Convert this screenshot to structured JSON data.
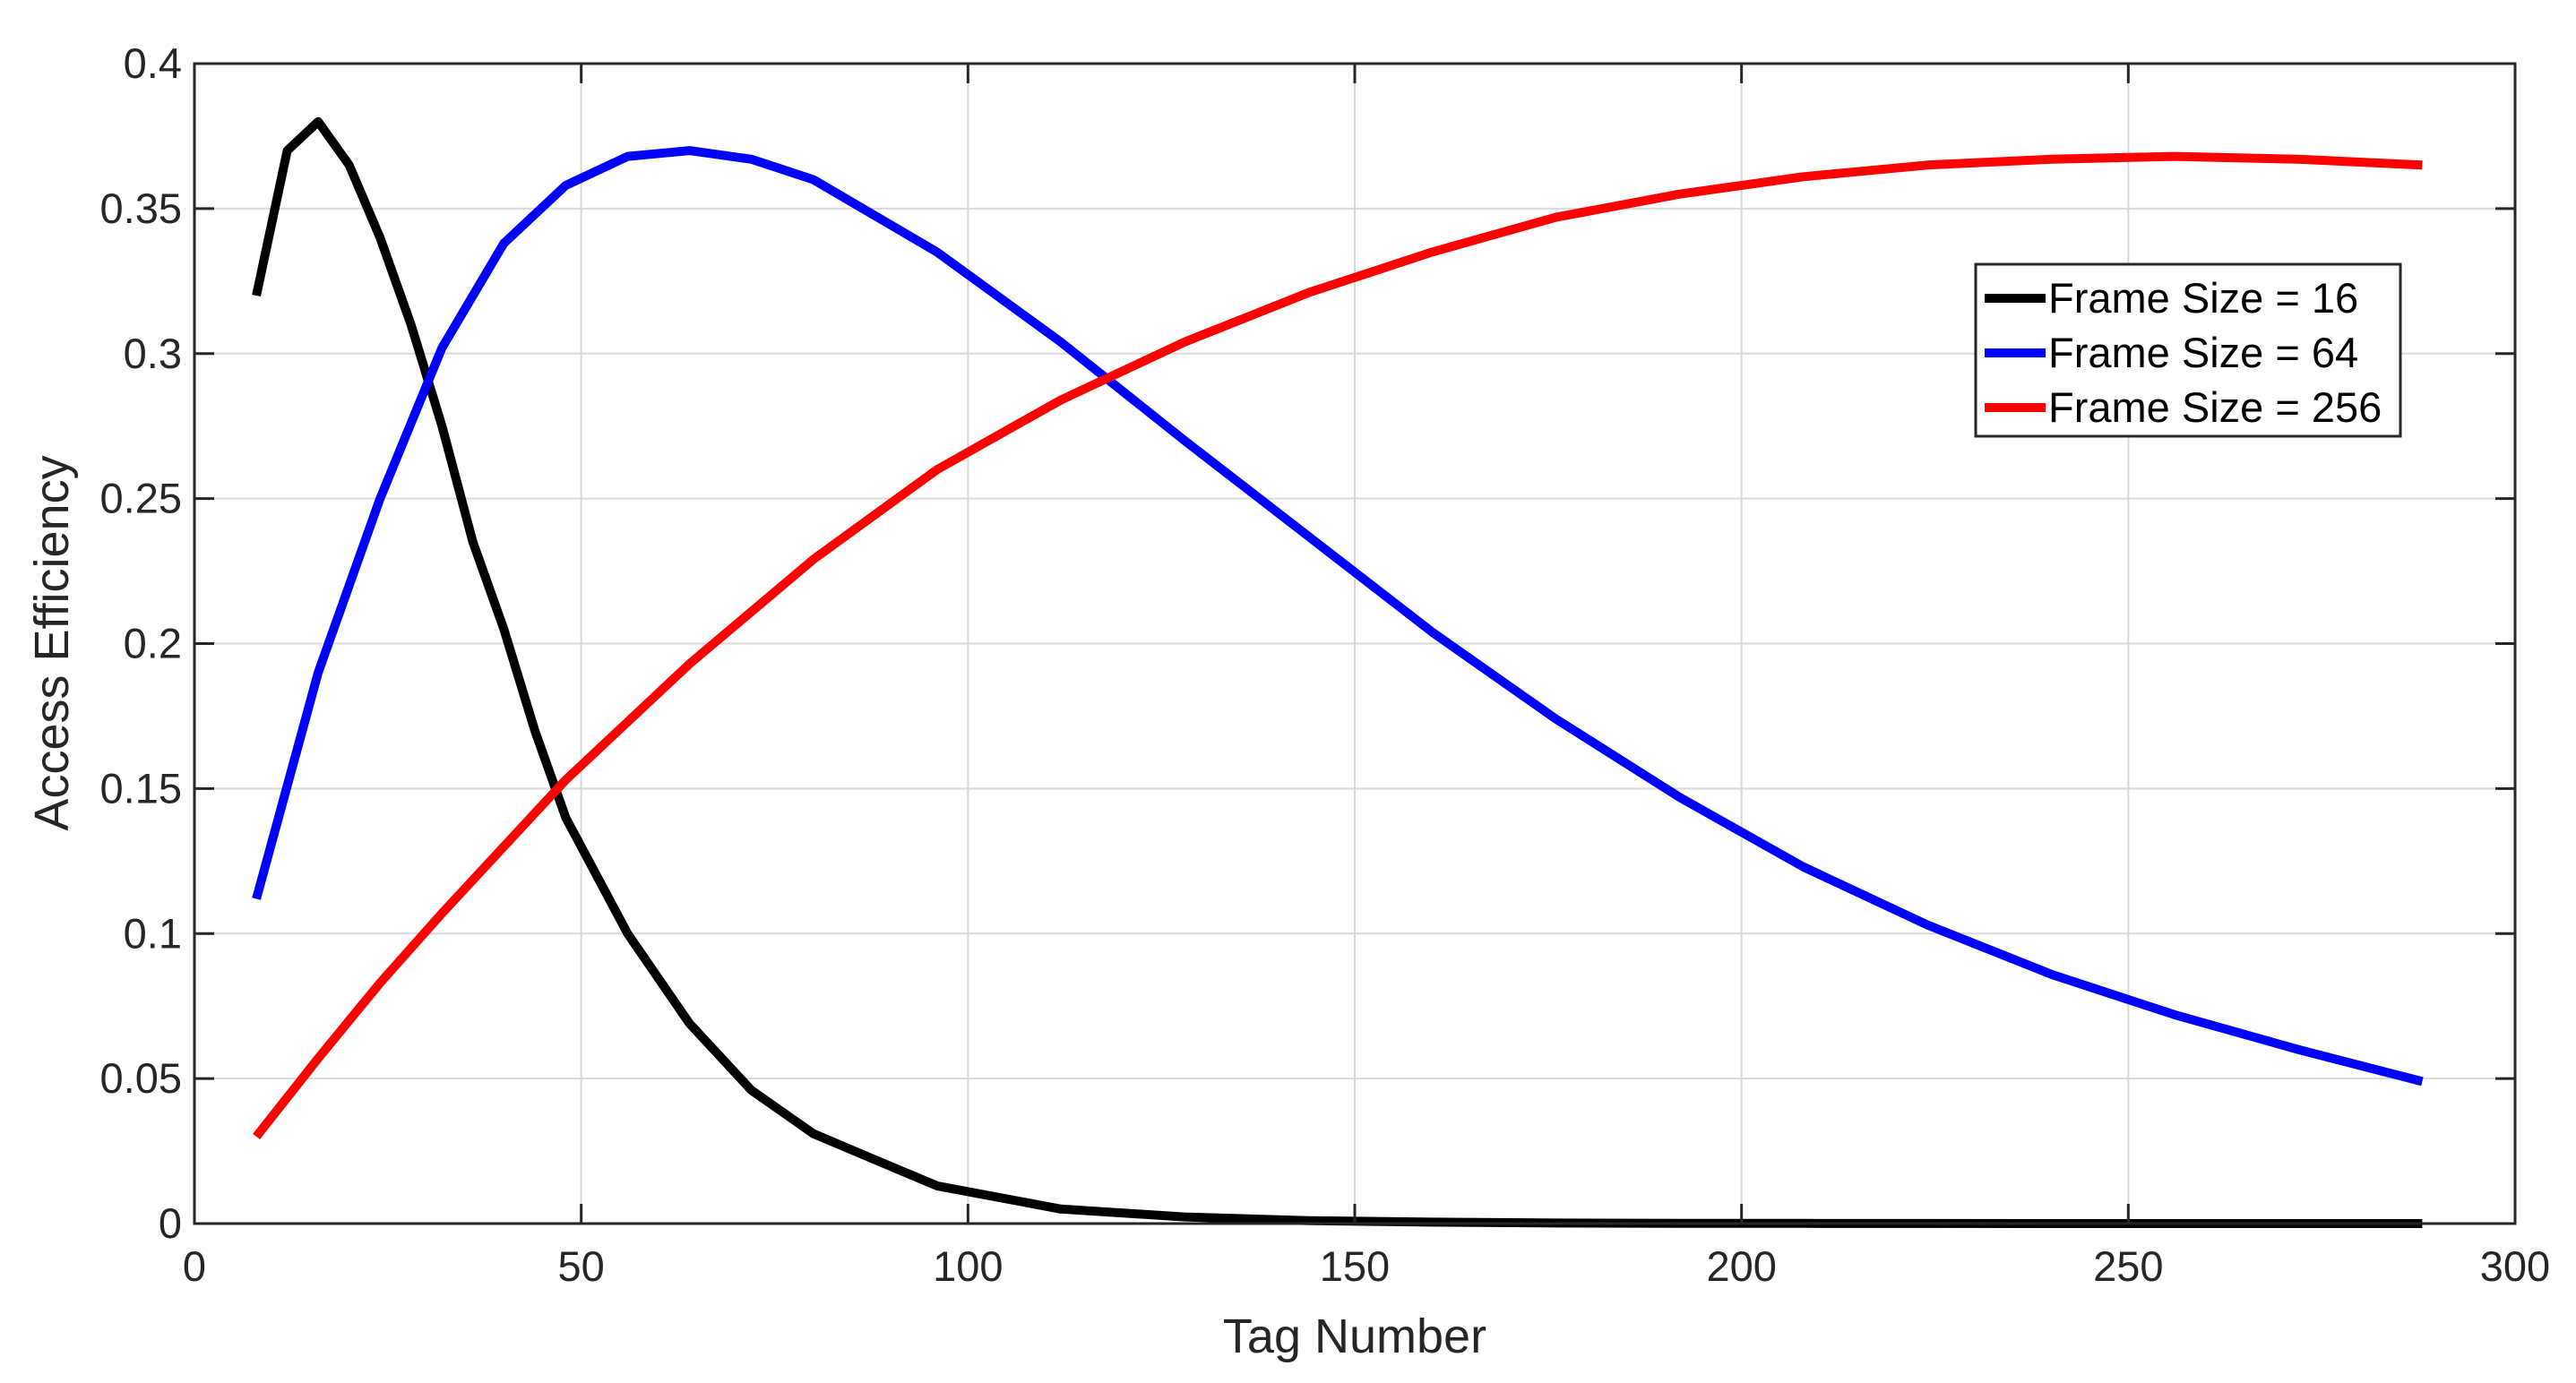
{
  "chart_data": {
    "type": "line",
    "title": "",
    "xlabel": "Tag Number",
    "ylabel": "Access Efficiency",
    "xlim": [
      0,
      300
    ],
    "ylim": [
      0,
      0.4
    ],
    "xticks": [
      0,
      50,
      100,
      150,
      200,
      250,
      300
    ],
    "yticks": [
      0,
      0.05,
      0.1,
      0.15,
      0.2,
      0.25,
      0.3,
      0.35,
      0.4
    ],
    "xtick_labels": [
      "0",
      "50",
      "100",
      "150",
      "200",
      "250",
      "300"
    ],
    "ytick_labels": [
      "0",
      "0.05",
      "0.1",
      "0.15",
      "0.2",
      "0.25",
      "0.3",
      "0.35",
      "0.4"
    ],
    "grid": true,
    "legend_position": "top-right",
    "series": [
      {
        "name": "Frame Size = 16",
        "color": "#000000",
        "x": [
          8,
          12,
          16,
          20,
          24,
          28,
          32,
          36,
          40,
          44,
          48,
          56,
          64,
          72,
          80,
          88,
          96,
          112,
          128,
          144,
          160,
          176,
          192,
          208,
          224,
          240,
          256,
          272,
          288
        ],
        "y": [
          0.32,
          0.37,
          0.38,
          0.365,
          0.34,
          0.31,
          0.275,
          0.235,
          0.205,
          0.17,
          0.14,
          0.1,
          0.069,
          0.046,
          0.031,
          0.022,
          0.013,
          0.005,
          0.0023,
          0.001,
          0.0005,
          0.0002,
          0.0001,
          5e-05,
          2e-05,
          1e-05,
          0,
          0,
          0
        ]
      },
      {
        "name": "Frame Size = 64",
        "color": "#0000ff",
        "x": [
          8,
          16,
          24,
          32,
          40,
          48,
          56,
          64,
          72,
          80,
          96,
          112,
          128,
          144,
          160,
          176,
          192,
          208,
          224,
          240,
          256,
          272,
          288
        ],
        "y": [
          0.112,
          0.19,
          0.25,
          0.302,
          0.338,
          0.358,
          0.368,
          0.37,
          0.367,
          0.36,
          0.335,
          0.304,
          0.27,
          0.237,
          0.204,
          0.174,
          0.147,
          0.123,
          0.103,
          0.086,
          0.072,
          0.06,
          0.049
        ]
      },
      {
        "name": "Frame Size = 256",
        "color": "#ff0000",
        "x": [
          8,
          16,
          24,
          32,
          40,
          48,
          64,
          80,
          96,
          112,
          128,
          144,
          160,
          176,
          192,
          208,
          224,
          240,
          256,
          272,
          288
        ],
        "y": [
          0.03,
          0.057,
          0.083,
          0.107,
          0.13,
          0.153,
          0.193,
          0.229,
          0.26,
          0.284,
          0.304,
          0.321,
          0.335,
          0.347,
          0.355,
          0.361,
          0.365,
          0.367,
          0.368,
          0.367,
          0.365
        ]
      }
    ]
  }
}
